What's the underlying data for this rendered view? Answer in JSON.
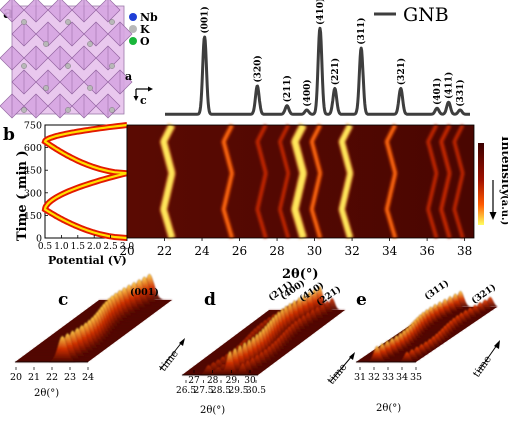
{
  "panels": {
    "a": "a",
    "b": "b",
    "c": "c",
    "d": "d",
    "e": "e"
  },
  "crystal": {
    "legend": [
      {
        "label": "Nb",
        "color": "#1f3fd6"
      },
      {
        "label": "K",
        "color": "#b8b8b8"
      },
      {
        "label": "O",
        "color": "#19b63a"
      }
    ],
    "axis_a": "a",
    "axis_c": "c"
  },
  "chart_data": [
    {
      "type": "line",
      "panel": "a",
      "legend": "GNB",
      "xlim": [
        20,
        38.5
      ],
      "peaks": [
        {
          "x": 22.4,
          "h": 0.9,
          "label": "(001)"
        },
        {
          "x": 25.6,
          "h": 0.33,
          "label": "(320)"
        },
        {
          "x": 27.4,
          "h": 0.1,
          "label": "(211)"
        },
        {
          "x": 28.6,
          "h": 0.05,
          "label": "(400)"
        },
        {
          "x": 29.4,
          "h": 1.0,
          "label": "(410)"
        },
        {
          "x": 30.3,
          "h": 0.3,
          "label": "(221)"
        },
        {
          "x": 31.9,
          "h": 0.77,
          "label": "(311)"
        },
        {
          "x": 34.3,
          "h": 0.3,
          "label": "(321)"
        },
        {
          "x": 36.5,
          "h": 0.07,
          "label": "(401)"
        },
        {
          "x": 37.2,
          "h": 0.14,
          "label": "(411)"
        },
        {
          "x": 37.9,
          "h": 0.05,
          "label": "(331)"
        }
      ]
    },
    {
      "type": "line",
      "panel": "b-left",
      "xlabel": "Potential (V)",
      "ylabel": "Time ( min )",
      "xlim": [
        0.5,
        3.0
      ],
      "ylim": [
        0,
        750
      ],
      "xticks": [
        "0.5",
        "1.0",
        "1.5",
        "2.0",
        "2.5",
        "3.0"
      ],
      "yticks": [
        "0",
        "150",
        "300",
        "450",
        "600",
        "750"
      ],
      "voltage_profile": [
        [
          3.0,
          0
        ],
        [
          0.5,
          190
        ],
        [
          3.0,
          430
        ],
        [
          0.5,
          640
        ],
        [
          3.0,
          750
        ]
      ]
    },
    {
      "type": "heatmap",
      "panel": "b-right",
      "xlabel": "2θ(°)",
      "xlim": [
        20,
        38.5
      ],
      "xticks": [
        "20",
        "22",
        "24",
        "26",
        "28",
        "30",
        "32",
        "34",
        "36",
        "38"
      ],
      "colorbar_label": "Intensity",
      "colorbar_unit": "(a.u.)"
    },
    {
      "type": "surface",
      "panel": "c",
      "xlabel": "2θ(°)",
      "xticks": [
        "20",
        "21",
        "22",
        "23",
        "24"
      ],
      "peak_labels": [
        "(001)"
      ],
      "time_label": "time"
    },
    {
      "type": "surface",
      "panel": "d",
      "xlabel": "2θ(°)",
      "xticks": [
        "26.5",
        "27.5",
        "28.5",
        "29.5",
        "30.5"
      ],
      "xticks_upper": [
        "27",
        "28",
        "29",
        "30"
      ],
      "peak_labels": [
        "(211)",
        "(400)",
        "(410)",
        "(221)"
      ],
      "time_label": "time"
    },
    {
      "type": "surface",
      "panel": "e",
      "xlabel": "2θ(°)",
      "xticks": [
        "31",
        "32",
        "33",
        "34",
        "35"
      ],
      "peak_labels": [
        "(311)",
        "(321)"
      ],
      "time_label": "time"
    }
  ]
}
